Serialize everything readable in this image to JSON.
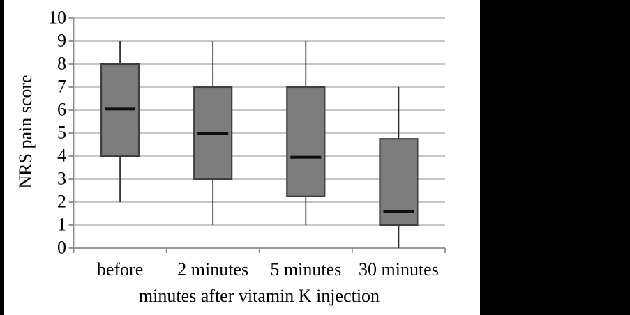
{
  "figure": {
    "background_color": "#ffffff",
    "left_edge_bar_color": "#000000",
    "right_panel_color": "#000000"
  },
  "chart_data": {
    "type": "boxplot",
    "title": "",
    "xlabel": "minutes after vitamin K injection",
    "ylabel": "NRS pain score",
    "categories": [
      "before",
      "2 minutes",
      "5 minutes",
      "30 minutes"
    ],
    "ylim": [
      0,
      10
    ],
    "yticks": [
      0,
      1,
      2,
      3,
      4,
      5,
      6,
      7,
      8,
      9,
      10
    ],
    "grid": true,
    "legend": false,
    "series": [
      {
        "category": "before",
        "whisker_low": 2,
        "q1": 4,
        "median": 6.05,
        "q3": 8,
        "whisker_high": 9
      },
      {
        "category": "2 minutes",
        "whisker_low": 1,
        "q1": 3,
        "median": 5,
        "q3": 7,
        "whisker_high": 9
      },
      {
        "category": "5 minutes",
        "whisker_low": 1,
        "q1": 2.25,
        "median": 3.95,
        "q3": 7,
        "whisker_high": 9
      },
      {
        "category": "30 minutes",
        "whisker_low": 0,
        "q1": 1,
        "median": 1.6,
        "q3": 4.75,
        "whisker_high": 7
      }
    ],
    "colors": {
      "box_fill": "#7d7d7d",
      "box_border": "#3f3f3f",
      "median_line": "#0d0d0d",
      "whisker_line": "#262626",
      "gridline": "#b3b3b3",
      "axis_line": "#8c8c8c",
      "text": "#000000"
    }
  }
}
